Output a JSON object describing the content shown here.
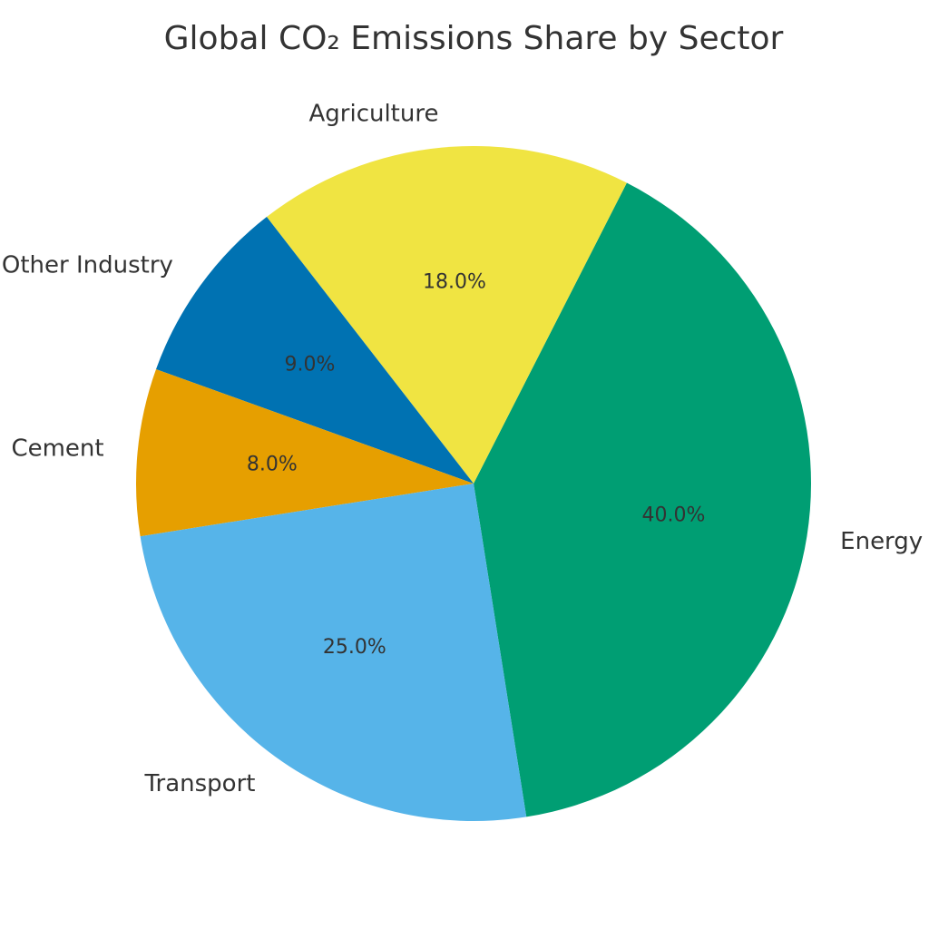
{
  "chart_data": {
    "type": "pie",
    "title": "Global CO₂ Emissions Share by Sector",
    "slices": [
      {
        "label": "Energy",
        "value": 40.0,
        "pct_label": "40.0%",
        "color": "#009E73"
      },
      {
        "label": "Agriculture",
        "value": 18.0,
        "pct_label": "18.0%",
        "color": "#F0E442"
      },
      {
        "label": "Other Industry",
        "value": 9.0,
        "pct_label": "9.0%",
        "color": "#0072B2"
      },
      {
        "label": "Cement",
        "value": 8.0,
        "pct_label": "8.0%",
        "color": "#E69F00"
      },
      {
        "label": "Transport",
        "value": 25.0,
        "pct_label": "25.0%",
        "color": "#56B4E9"
      }
    ],
    "direction": "counterclockwise",
    "legend": "none"
  }
}
